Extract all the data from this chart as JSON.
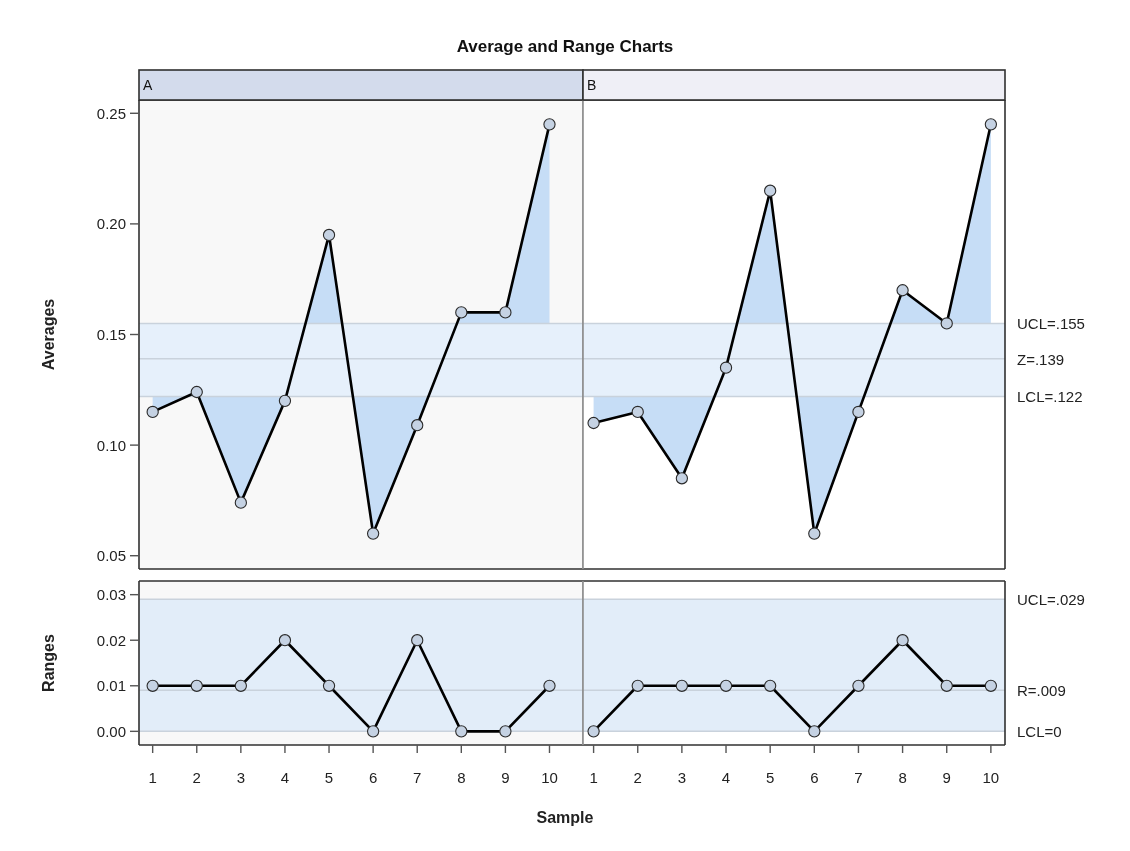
{
  "chart_data": [
    {
      "type": "line",
      "title": "Average and Range Charts",
      "subtitle": "A",
      "ylabel": "Averages",
      "x": [
        1,
        2,
        3,
        4,
        5,
        6,
        7,
        8,
        9,
        10
      ],
      "series": [
        {
          "color": "#000000",
          "values": [
            0.115,
            0.124,
            0.074,
            0.12,
            0.195,
            0.06,
            0.109,
            0.16,
            0.16,
            0.245
          ]
        }
      ],
      "xlim": [
        0.69,
        10.76
      ],
      "ylim": [
        0.044,
        0.256
      ],
      "yticks": [
        0.05,
        {
          "value": 0.1,
          "label": "0.10"
        },
        0.15,
        {
          "value": 0.2,
          "label": "0.20"
        },
        0.25
      ],
      "bands": [
        {
          "axis": "y",
          "from": 0.122,
          "to": 0.155,
          "color": "#e6f0fb"
        }
      ],
      "ref_lines": [
        {
          "axis": "y",
          "value": 0.155,
          "color": "#c9d2dc"
        },
        {
          "axis": "y",
          "value": 0.139,
          "color": "#c9d2dc"
        },
        {
          "axis": "y",
          "value": 0.122,
          "color": "#c9d2dc"
        }
      ],
      "marker": "circle",
      "line_style": "solid",
      "tick_labels": "y"
    },
    {
      "type": "line",
      "subtitle": "B",
      "x": [
        1,
        2,
        3,
        4,
        5,
        6,
        7,
        8,
        9,
        10
      ],
      "series": [
        {
          "color": "#000000",
          "values": [
            0.11,
            0.115,
            0.085,
            0.135,
            0.215,
            0.06,
            0.115,
            0.17,
            0.155,
            0.245
          ]
        }
      ],
      "xlim": [
        0.76,
        10.32
      ],
      "ylim": [
        0.044,
        0.256
      ],
      "bands": [
        {
          "axis": "y",
          "from": 0.122,
          "to": 0.155,
          "color": "#e6f0fb"
        }
      ],
      "ref_lines": [
        {
          "axis": "y",
          "value": 0.155,
          "label": "UCL=.155",
          "color": "#c9d2dc"
        },
        {
          "axis": "y",
          "value": 0.139,
          "label": "Z=.139",
          "color": "#c9d2dc"
        },
        {
          "axis": "y",
          "value": 0.122,
          "label": "LCL=.122",
          "color": "#c9d2dc"
        }
      ],
      "marker": "circle",
      "line_style": "solid",
      "tick_labels": false
    },
    {
      "type": "line",
      "ylabel": "Ranges",
      "xlabel": "Sample",
      "x": [
        1,
        2,
        3,
        4,
        5,
        6,
        7,
        8,
        9,
        10
      ],
      "series": [
        {
          "color": "#000000",
          "values": [
            0.01,
            0.01,
            0.01,
            0.02,
            0.01,
            0,
            0.02,
            0,
            0,
            0.01
          ]
        }
      ],
      "xlim": [
        0.69,
        10.76
      ],
      "ylim": [
        -0.003,
        0.033
      ],
      "xticks": [
        1,
        2,
        3,
        4,
        5,
        6,
        7,
        8,
        9,
        10
      ],
      "yticks": [
        {
          "value": 0,
          "label": "0.00"
        },
        0.01,
        0.02,
        0.03
      ],
      "bands": [
        {
          "axis": "y",
          "from": 0,
          "to": 0.029,
          "color": "#e2edf9"
        }
      ],
      "ref_lines": [
        {
          "axis": "y",
          "value": 0.029,
          "color": "#c9d2dc"
        },
        {
          "axis": "y",
          "value": 0.009,
          "color": "#c9d2dc"
        },
        {
          "axis": "y",
          "value": 0,
          "color": "#c9d2dc"
        }
      ],
      "marker": "circle",
      "line_style": "solid"
    },
    {
      "type": "line",
      "x": [
        1,
        2,
        3,
        4,
        5,
        6,
        7,
        8,
        9,
        10
      ],
      "series": [
        {
          "color": "#000000",
          "values": [
            0,
            0.01,
            0.01,
            0.01,
            0.01,
            0,
            0.01,
            0.02,
            0.01,
            0.01
          ]
        }
      ],
      "xlim": [
        0.76,
        10.32
      ],
      "ylim": [
        -0.003,
        0.033
      ],
      "xticks": [
        1,
        2,
        3,
        4,
        5,
        6,
        7,
        8,
        9,
        10
      ],
      "bands": [
        {
          "axis": "y",
          "from": 0,
          "to": 0.029,
          "color": "#e2edf9"
        }
      ],
      "ref_lines": [
        {
          "axis": "y",
          "value": 0.029,
          "label": "UCL=.029",
          "color": "#c9d2dc"
        },
        {
          "axis": "y",
          "value": 0.009,
          "label": "R=.009",
          "color": "#c9d2dc"
        },
        {
          "axis": "y",
          "value": 0,
          "label": "LCL=0",
          "color": "#c9d2dc"
        }
      ],
      "marker": "circle",
      "line_style": "solid",
      "tick_labels": "x"
    }
  ]
}
